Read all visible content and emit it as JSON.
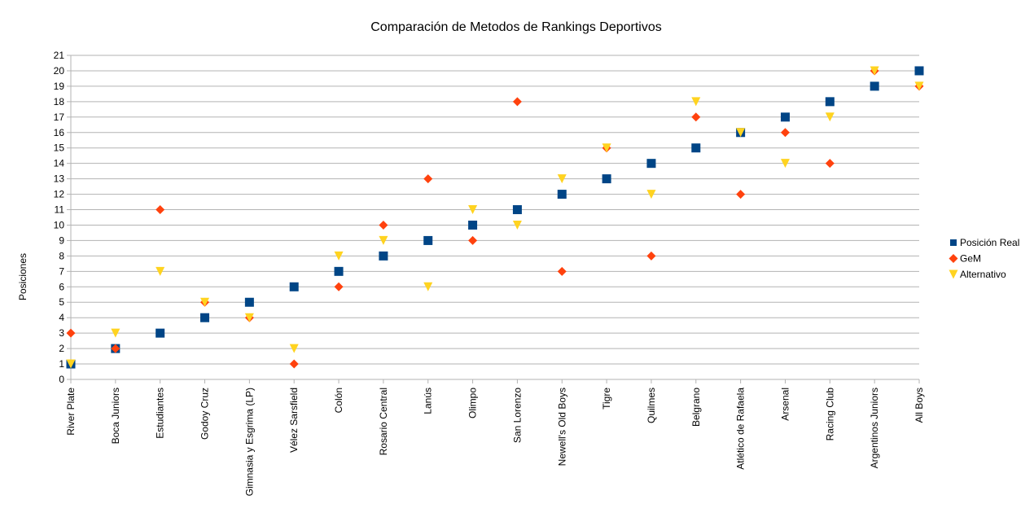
{
  "chart_data": {
    "type": "scatter",
    "title": "Comparación de Metodos de Rankings Deportivos",
    "xlabel": "",
    "ylabel": "Posiciones",
    "ylim": [
      0,
      21
    ],
    "yticks": [
      0,
      1,
      2,
      3,
      4,
      5,
      6,
      7,
      8,
      9,
      10,
      11,
      12,
      13,
      14,
      15,
      16,
      17,
      18,
      19,
      20,
      21
    ],
    "grid": true,
    "legend_position": "right",
    "categories": [
      "River Plate",
      "Boca Juniors",
      "Estudiantes",
      "Godoy Cruz",
      "Gimnasia y Esgrima (LP)",
      "Vélez Sarsfield",
      "Colón",
      "Rosario Central",
      "Lanús",
      "Olimpo",
      "San Lorenzo",
      "Newell's Old Boys",
      "Tigre",
      "Quilmes",
      "Belgrano",
      "Atlético de Rafaela",
      "Arsenal",
      "Racing Club",
      "Argentinos Juniors",
      "All Boys"
    ],
    "series": [
      {
        "name": "Posición Real",
        "marker": "square",
        "color": "#004586",
        "values": [
          1,
          2,
          3,
          4,
          5,
          6,
          7,
          8,
          9,
          10,
          11,
          12,
          13,
          14,
          15,
          16,
          17,
          18,
          19,
          20
        ]
      },
      {
        "name": "GeM",
        "marker": "diamond",
        "color": "#ff420e",
        "values": [
          3,
          2,
          11,
          5,
          4,
          1,
          6,
          10,
          13,
          9,
          18,
          7,
          15,
          8,
          17,
          12,
          16,
          14,
          20,
          19
        ]
      },
      {
        "name": "Alternativo",
        "marker": "triangle-down",
        "color": "#ffd320",
        "values": [
          1,
          3,
          7,
          5,
          4,
          2,
          8,
          9,
          6,
          11,
          10,
          13,
          15,
          12,
          18,
          16,
          14,
          17,
          20,
          19
        ]
      }
    ]
  }
}
